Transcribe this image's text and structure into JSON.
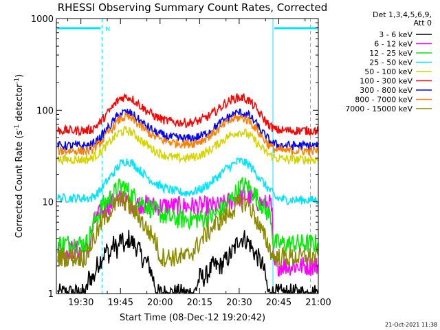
{
  "chart_data": {
    "type": "line",
    "title": "RHESSI Observing Summary Count Rates, Corrected",
    "xlabel": "Start Time (08-Dec-12 19:20:42)",
    "ylabel_prefix": "Corrected Count Rate (s",
    "ylabel_sup1": "-1",
    "ylabel_middle": " detector",
    "ylabel_sup2": "-1",
    "ylabel_suffix": ")",
    "x_unit": "minutes since 19:20",
    "xlim": [
      0.7,
      100
    ],
    "ylim": [
      1,
      1000
    ],
    "yscale": "log",
    "xticks": [
      {
        "x": 10,
        "label": "19:30"
      },
      {
        "x": 25,
        "label": "19:45"
      },
      {
        "x": 40,
        "label": "20:00"
      },
      {
        "x": 55,
        "label": "20:15"
      },
      {
        "x": 70,
        "label": "20:30"
      },
      {
        "x": 85,
        "label": "20:45"
      },
      {
        "x": 100,
        "label": "21:00"
      }
    ],
    "yticks": [
      {
        "y": 1,
        "label": "1"
      },
      {
        "y": 10,
        "label": "10"
      },
      {
        "y": 100,
        "label": "100"
      },
      {
        "y": 1000,
        "label": "1000"
      }
    ],
    "legend_header": [
      "Det 1,3,4,5,6,9,",
      "Att 0"
    ],
    "legend_position": "right",
    "attenuator_annotation": "N",
    "night_markers_x": [
      18,
      82.8,
      97
    ],
    "night_bar_color": "#00e5ff",
    "series": [
      {
        "name": "3 - 6 keV",
        "color": "#000000",
        "x": [
          1,
          8,
          12,
          13,
          15,
          16,
          18,
          20,
          21,
          22,
          24,
          25,
          27,
          28,
          30,
          32,
          33,
          36,
          39,
          40,
          53,
          55,
          57,
          60,
          63,
          66,
          68,
          70,
          72,
          74,
          75,
          77,
          79,
          80,
          81,
          82,
          100
        ],
        "values": [
          1,
          1,
          1,
          1.5,
          1.5,
          2,
          2.5,
          3,
          2.5,
          3.5,
          3,
          4,
          3,
          4,
          3.5,
          3,
          2.5,
          2,
          1,
          1,
          1,
          1.5,
          1.5,
          2,
          2,
          2.5,
          3,
          4,
          4,
          3.5,
          3,
          2.5,
          2,
          1.5,
          1,
          1,
          1
        ]
      },
      {
        "name": "6 - 12 keV",
        "color": "#ff00ff",
        "x": [
          1,
          12,
          13,
          15,
          18,
          21,
          24,
          26,
          27,
          30,
          33,
          38,
          45,
          50,
          55,
          60,
          63,
          66,
          69,
          72,
          75,
          77,
          79,
          82,
          82.5,
          83,
          100
        ],
        "values": [
          3,
          3,
          3,
          6,
          8,
          9.5,
          10.5,
          11,
          10,
          9.5,
          9.5,
          9,
          9,
          9,
          9,
          9,
          9,
          10,
          11,
          11.5,
          11,
          10,
          9.5,
          9.5,
          7,
          2,
          2
        ]
      },
      {
        "name": "12 - 25 keV",
        "color": "#00ee00",
        "x": [
          1,
          12,
          13,
          15,
          18,
          21,
          24,
          26,
          27,
          29,
          33,
          38,
          42,
          45,
          50,
          55,
          60,
          63,
          66,
          69,
          71,
          73,
          75,
          78,
          80,
          82,
          83,
          100
        ],
        "values": [
          3.5,
          3.5,
          4,
          6,
          9,
          11,
          14,
          15,
          14,
          12,
          10,
          8,
          7,
          6.5,
          6.5,
          6.5,
          7,
          8,
          10,
          13,
          15,
          15,
          13,
          10,
          8,
          7,
          3.5,
          3.5
        ]
      },
      {
        "name": "25 - 50 keV",
        "color": "#00e5ff",
        "x": [
          1,
          12,
          14,
          17,
          20,
          23,
          25,
          27,
          29,
          31,
          34,
          38,
          42,
          46,
          50,
          53,
          56,
          59,
          62,
          65,
          68,
          70,
          72,
          74,
          76,
          78,
          80,
          82,
          84,
          88,
          100
        ],
        "values": [
          11,
          11,
          11,
          13,
          17,
          22,
          26,
          28,
          27,
          24,
          20,
          16,
          14,
          13,
          12.5,
          13,
          14,
          16,
          19,
          23,
          26,
          28,
          27,
          25,
          21,
          18,
          15,
          13,
          11,
          10.5,
          10.5
        ]
      },
      {
        "name": "50 - 100 keV",
        "color": "#d4d400",
        "x": [
          1,
          12,
          14,
          17,
          20,
          23,
          25,
          27,
          29,
          31,
          34,
          38,
          42,
          46,
          50,
          53,
          56,
          59,
          62,
          65,
          68,
          70,
          72,
          74,
          76,
          78,
          80,
          82,
          84,
          88,
          100
        ],
        "values": [
          29,
          29,
          30,
          34,
          42,
          52,
          58,
          60,
          58,
          52,
          44,
          36,
          32,
          30,
          30,
          31,
          33,
          37,
          43,
          50,
          56,
          58,
          57,
          53,
          46,
          40,
          35,
          32,
          30,
          29,
          29
        ]
      },
      {
        "name": "100 - 300 keV",
        "color": "#ff0000",
        "x": [
          1,
          12,
          14,
          17,
          20,
          23,
          25,
          27,
          29,
          31,
          34,
          38,
          42,
          46,
          50,
          53,
          56,
          59,
          62,
          65,
          68,
          70,
          72,
          74,
          76,
          78,
          80,
          82,
          84,
          88,
          100
        ],
        "values": [
          60,
          60,
          62,
          72,
          92,
          118,
          136,
          140,
          136,
          122,
          104,
          86,
          77,
          74,
          73,
          74,
          79,
          88,
          102,
          120,
          134,
          138,
          136,
          126,
          108,
          90,
          76,
          66,
          61,
          60,
          60
        ]
      },
      {
        "name": "300 - 800 keV",
        "color": "#0000ff",
        "x": [
          1,
          12,
          14,
          17,
          20,
          23,
          25,
          27,
          29,
          31,
          34,
          38,
          42,
          46,
          50,
          53,
          56,
          59,
          62,
          65,
          68,
          70,
          72,
          74,
          76,
          78,
          80,
          82,
          84,
          88,
          100
        ],
        "values": [
          41,
          41,
          42,
          49,
          62,
          80,
          92,
          95,
          92,
          83,
          70,
          58,
          52,
          50,
          49,
          50,
          53,
          60,
          69,
          81,
          91,
          94,
          92,
          86,
          74,
          61,
          52,
          45,
          42,
          41,
          41
        ]
      },
      {
        "name": "800 - 7000 keV",
        "color": "#ff8000",
        "x": [
          1,
          12,
          14,
          17,
          20,
          23,
          25,
          27,
          29,
          31,
          34,
          38,
          42,
          46,
          50,
          53,
          56,
          59,
          62,
          65,
          68,
          70,
          72,
          74,
          76,
          78,
          80,
          82,
          84,
          88,
          100
        ],
        "values": [
          36,
          36,
          37,
          43,
          55,
          70,
          81,
          84,
          81,
          73,
          62,
          51,
          46,
          44,
          43,
          44,
          47,
          53,
          61,
          72,
          81,
          83,
          81,
          76,
          65,
          54,
          46,
          40,
          37,
          36,
          36
        ]
      },
      {
        "name": "7000 - 15000 keV",
        "color": "#8b8b00",
        "x": [
          1,
          12,
          13,
          15,
          18,
          21,
          24,
          26,
          27,
          29,
          32,
          35,
          38,
          40,
          45,
          50,
          53,
          56,
          59,
          62,
          65,
          68,
          70,
          72,
          74,
          76,
          78,
          80,
          83,
          100
        ],
        "values": [
          2.5,
          2.5,
          3,
          4,
          6,
          8,
          10,
          10.5,
          10,
          8.5,
          7,
          5,
          4,
          2.5,
          2.5,
          2.5,
          3,
          4,
          5,
          6,
          7,
          8.5,
          9.5,
          10,
          9,
          7,
          5,
          4,
          2.5,
          2.5
        ]
      }
    ]
  },
  "footer": {
    "timestamp": "21-Oct-2021 11:38"
  }
}
